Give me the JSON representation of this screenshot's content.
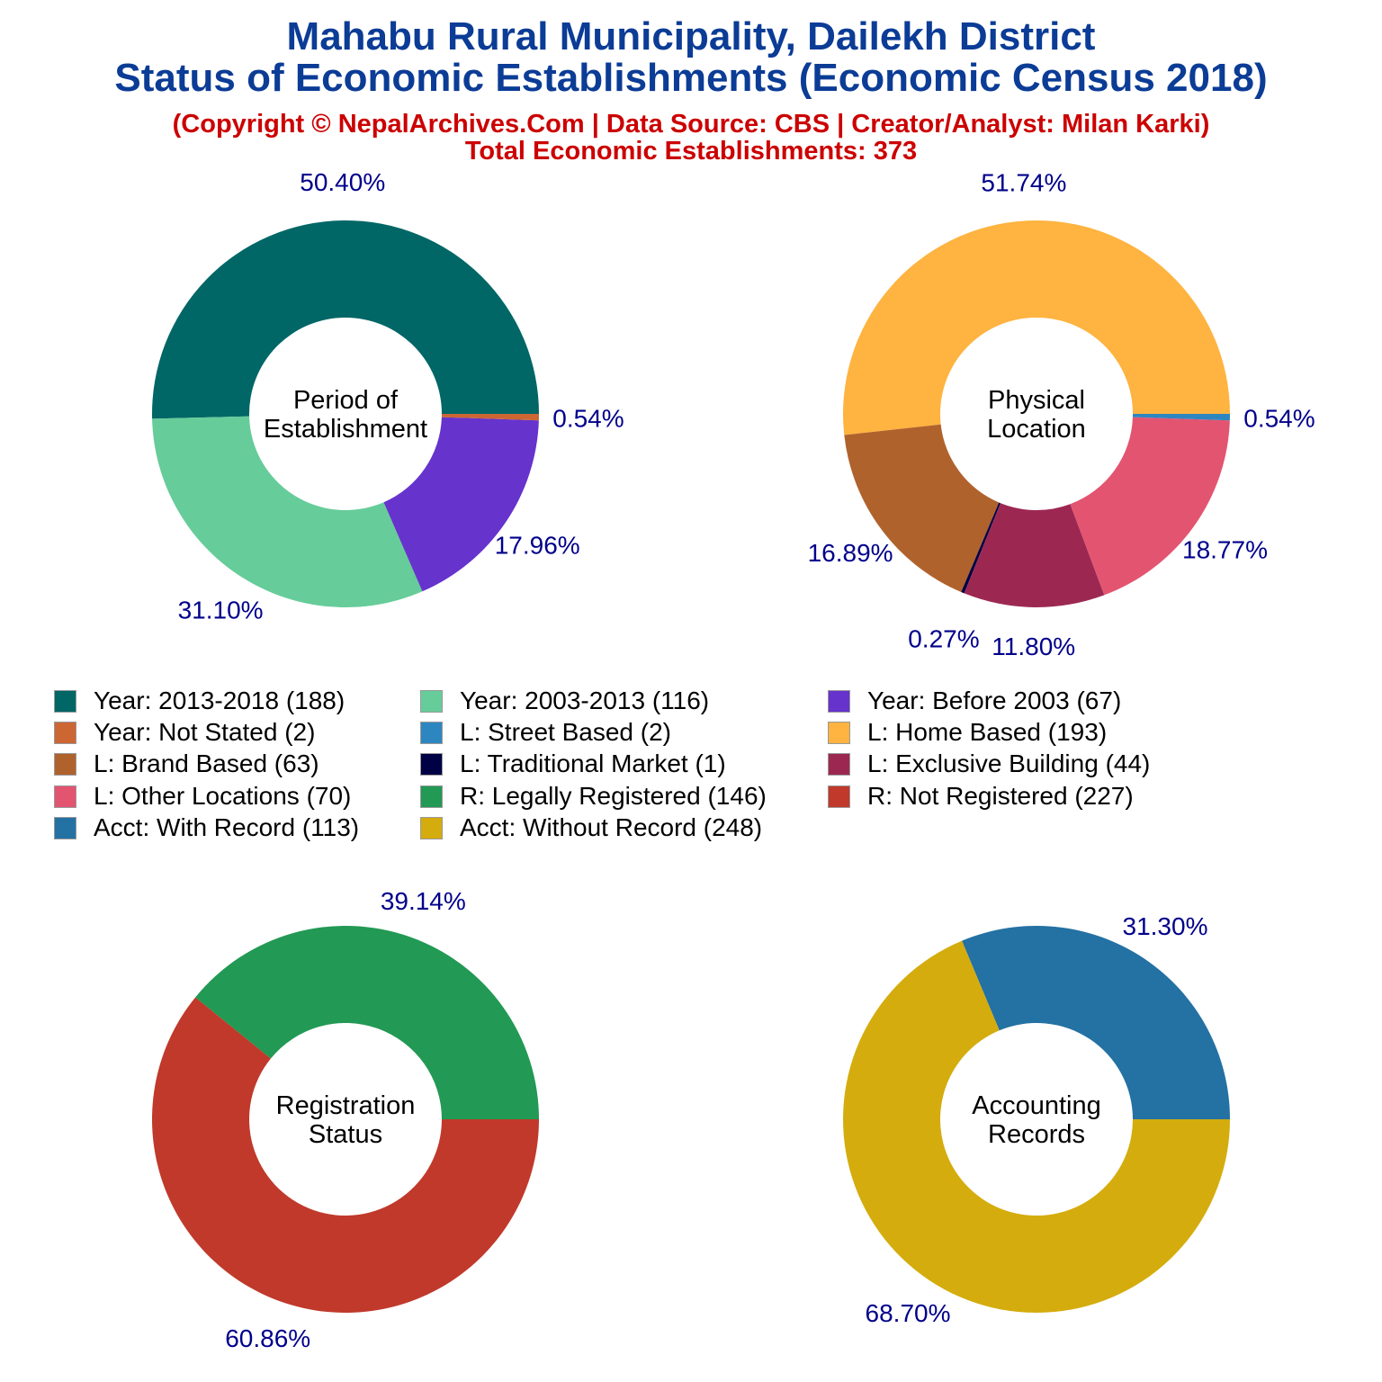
{
  "title_line1": "Mahabu Rural Municipality, Dailekh District",
  "title_line2": "Status of Economic Establishments (Economic Census 2018)",
  "subtitle_line1": "(Copyright © NepalArchives.Com | Data Source: CBS | Creator/Analyst: Milan Karki)",
  "subtitle_line2": "Total Economic Establishments: 373",
  "chart_data": [
    {
      "type": "pie",
      "style": "donut",
      "center_label": [
        "Period of",
        "Establishment"
      ],
      "slices": [
        {
          "label": "Year: 2013-2018",
          "value": 188,
          "percent_label": "50.40%",
          "color": "#006666"
        },
        {
          "label": "Year: 2003-2013",
          "value": 116,
          "percent_label": "31.10%",
          "color": "#66cc99"
        },
        {
          "label": "Year: Before 2003",
          "value": 67,
          "percent_label": "17.96%",
          "color": "#6633cc"
        },
        {
          "label": "Year: Not Stated",
          "value": 2,
          "percent_label": "0.54%",
          "color": "#cc6633"
        }
      ]
    },
    {
      "type": "pie",
      "style": "donut",
      "center_label": [
        "Physical",
        "Location"
      ],
      "slices": [
        {
          "label": "L: Home Based",
          "value": 193,
          "percent_label": "51.74%",
          "color": "#ffb340"
        },
        {
          "label": "L: Brand Based",
          "value": 63,
          "percent_label": "16.89%",
          "color": "#b0622d"
        },
        {
          "label": "L: Traditional Market",
          "value": 1,
          "percent_label": "0.27%",
          "color": "#000044"
        },
        {
          "label": "L: Exclusive Building",
          "value": 44,
          "percent_label": "11.80%",
          "color": "#9c2852"
        },
        {
          "label": "L: Other Locations",
          "value": 70,
          "percent_label": "18.77%",
          "color": "#e35471"
        },
        {
          "label": "L: Street Based",
          "value": 2,
          "percent_label": "0.54%",
          "color": "#2e86c1"
        }
      ]
    },
    {
      "type": "pie",
      "style": "donut",
      "center_label": [
        "Registration",
        "Status"
      ],
      "slices": [
        {
          "label": "R: Legally Registered",
          "value": 146,
          "percent_label": "39.14%",
          "color": "#229954"
        },
        {
          "label": "R: Not Registered",
          "value": 227,
          "percent_label": "60.86%",
          "color": "#c0392b"
        }
      ]
    },
    {
      "type": "pie",
      "style": "donut",
      "center_label": [
        "Accounting",
        "Records"
      ],
      "slices": [
        {
          "label": "Acct: With Record",
          "value": 113,
          "percent_label": "31.30%",
          "color": "#2471a3"
        },
        {
          "label": "Acct: Without Record",
          "value": 248,
          "percent_label": "68.70%",
          "color": "#d4ac0d"
        }
      ]
    }
  ],
  "legend": [
    {
      "text": "Year: 2013-2018 (188)",
      "color": "#006666"
    },
    {
      "text": "Year: 2003-2013 (116)",
      "color": "#66cc99"
    },
    {
      "text": "Year: Before 2003 (67)",
      "color": "#6633cc"
    },
    {
      "text": "Year: Not Stated (2)",
      "color": "#cc6633"
    },
    {
      "text": "L: Street Based (2)",
      "color": "#2e86c1"
    },
    {
      "text": "L: Home Based (193)",
      "color": "#ffb340"
    },
    {
      "text": "L: Brand Based (63)",
      "color": "#b0622d"
    },
    {
      "text": "L: Traditional Market (1)",
      "color": "#000044"
    },
    {
      "text": "L: Exclusive Building (44)",
      "color": "#9c2852"
    },
    {
      "text": "L: Other Locations (70)",
      "color": "#e35471"
    },
    {
      "text": "R: Legally Registered (146)",
      "color": "#229954"
    },
    {
      "text": "R: Not Registered (227)",
      "color": "#c0392b"
    },
    {
      "text": "Acct: With Record (113)",
      "color": "#2471a3"
    },
    {
      "text": "Acct: Without Record (248)",
      "color": "#d4ac0d"
    }
  ],
  "label_color": "#00008b"
}
